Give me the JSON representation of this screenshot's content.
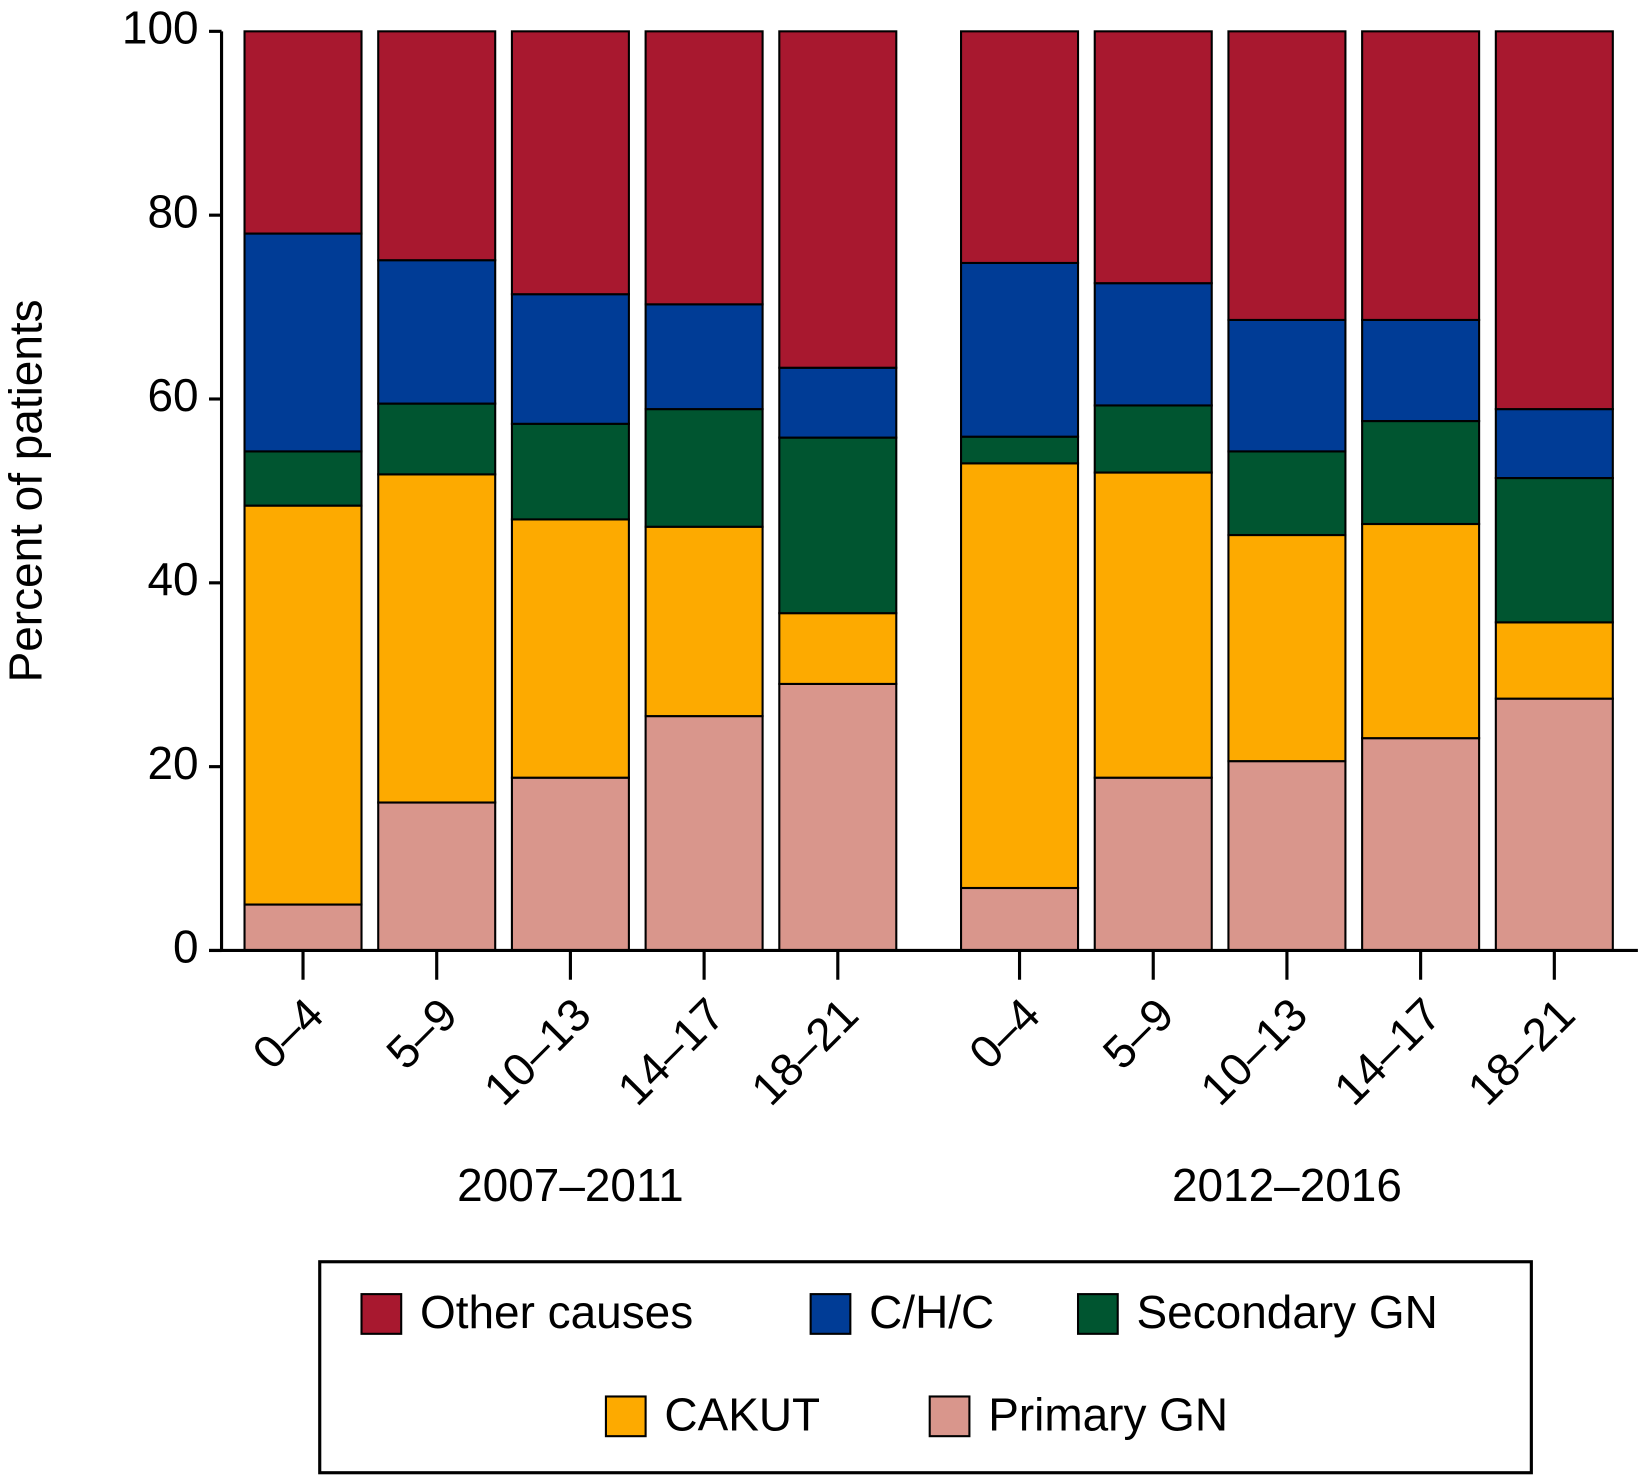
{
  "chart_data": {
    "type": "stacked-bar",
    "y_label": "Percent of patients",
    "categories": [
      "0–4",
      "5–9",
      "10–13",
      "14–17",
      "18–21",
      "0–4",
      "5–9",
      "10–13",
      "14–17",
      "18–21"
    ],
    "group_labels": [
      "2007–2011",
      "2012–2016"
    ],
    "series": [
      {
        "name": "Other causes",
        "color": "#a8182f",
        "values": [
          22.0,
          24.9,
          28.6,
          29.7,
          36.6,
          25.2,
          27.4,
          31.4,
          31.4,
          41.1
        ]
      },
      {
        "name": "C/H/C",
        "color": "#003c96",
        "values": [
          23.7,
          15.6,
          14.1,
          11.4,
          7.6,
          18.9,
          13.3,
          14.3,
          11.0,
          7.5
        ]
      },
      {
        "name": "Secondary GN",
        "color": "#005530",
        "values": [
          5.9,
          7.7,
          10.4,
          12.8,
          19.1,
          2.9,
          7.3,
          9.1,
          11.2,
          15.7
        ]
      },
      {
        "name": "CAKUT",
        "color": "#fdaa00",
        "values": [
          43.4,
          35.7,
          28.1,
          20.6,
          7.7,
          46.2,
          33.2,
          24.6,
          23.3,
          8.3
        ]
      },
      {
        "name": "Primary GN",
        "color": "#d9968c",
        "values": [
          5.0,
          16.1,
          18.8,
          25.5,
          29.0,
          6.8,
          18.8,
          20.6,
          23.1,
          27.4
        ]
      }
    ],
    "ylim": [
      0,
      100
    ],
    "yticks": [
      0,
      20,
      40,
      60,
      80,
      100
    ]
  }
}
